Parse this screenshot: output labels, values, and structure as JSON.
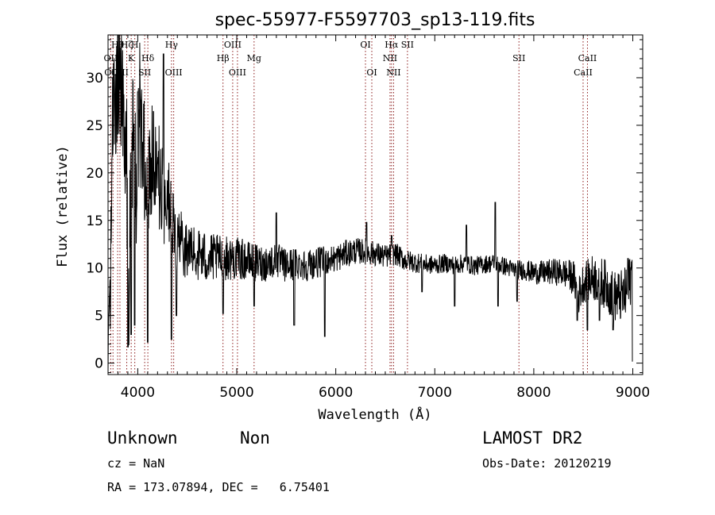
{
  "chart_data": {
    "type": "line",
    "title": "spec-55977-F5597703_sp13-119.fits",
    "xlabel": "Wavelength (Å)",
    "ylabel": "Flux (relative)",
    "xlim": [
      3700,
      9100
    ],
    "ylim": [
      -1.2,
      34.5
    ],
    "xticks": [
      4000,
      5000,
      6000,
      7000,
      8000,
      9000
    ],
    "yticks": [
      0,
      5,
      10,
      15,
      20,
      25,
      30
    ],
    "grid": false,
    "anchors": [
      [
        3700,
        0
      ],
      [
        3720,
        5
      ],
      [
        3740,
        24
      ],
      [
        3760,
        27
      ],
      [
        3780,
        26
      ],
      [
        3800,
        29
      ],
      [
        3830,
        30
      ],
      [
        3860,
        28
      ],
      [
        3890,
        20
      ],
      [
        3910,
        4
      ],
      [
        3930,
        25
      ],
      [
        3960,
        22
      ],
      [
        3990,
        18
      ],
      [
        4020,
        27
      ],
      [
        4060,
        22
      ],
      [
        4100,
        19
      ],
      [
        4150,
        23
      ],
      [
        4200,
        20
      ],
      [
        4260,
        17
      ],
      [
        4300,
        18
      ],
      [
        4350,
        14
      ],
      [
        4400,
        13
      ],
      [
        4500,
        12
      ],
      [
        4600,
        11.5
      ],
      [
        4700,
        11
      ],
      [
        4800,
        11
      ],
      [
        4900,
        11
      ],
      [
        5000,
        11
      ],
      [
        5100,
        10.8
      ],
      [
        5200,
        10.5
      ],
      [
        5300,
        10.5
      ],
      [
        5400,
        10.8
      ],
      [
        5500,
        10.2
      ],
      [
        5600,
        10.5
      ],
      [
        5700,
        10.3
      ],
      [
        5800,
        10.5
      ],
      [
        5900,
        10.8
      ],
      [
        6000,
        11
      ],
      [
        6100,
        11.5
      ],
      [
        6200,
        11.8
      ],
      [
        6300,
        11.7
      ],
      [
        6400,
        11.5
      ],
      [
        6500,
        11.2
      ],
      [
        6600,
        11.5
      ],
      [
        6700,
        10.8
      ],
      [
        6800,
        10.6
      ],
      [
        6900,
        10.4
      ],
      [
        7000,
        10.3
      ],
      [
        7100,
        10.5
      ],
      [
        7200,
        10.3
      ],
      [
        7300,
        10.5
      ],
      [
        7400,
        10.2
      ],
      [
        7500,
        10.4
      ],
      [
        7600,
        10.5
      ],
      [
        7700,
        10.2
      ],
      [
        7800,
        9.8
      ],
      [
        7900,
        9.8
      ],
      [
        8000,
        9.5
      ],
      [
        8100,
        9.5
      ],
      [
        8200,
        9.6
      ],
      [
        8300,
        9.5
      ],
      [
        8400,
        9
      ],
      [
        8450,
        7
      ],
      [
        8500,
        8.5
      ],
      [
        8600,
        9
      ],
      [
        8700,
        8.5
      ],
      [
        8750,
        8
      ],
      [
        8800,
        7
      ],
      [
        8900,
        7
      ],
      [
        8950,
        7.5
      ],
      [
        9000,
        10
      ]
    ],
    "features": [
      {
        "x": 3901,
        "y": 1.7
      },
      {
        "x": 3934,
        "y": 3.0
      },
      {
        "x": 3969,
        "y": 4.0
      },
      {
        "x": 4000,
        "y": 28.5
      },
      {
        "x": 4101,
        "y": 2.2
      },
      {
        "x": 4260,
        "y": 32.5
      },
      {
        "x": 4340,
        "y": 2.5
      },
      {
        "x": 4390,
        "y": 5.0
      },
      {
        "x": 4861,
        "y": 5.2
      },
      {
        "x": 5175,
        "y": 6.0
      },
      {
        "x": 5400,
        "y": 15.8
      },
      {
        "x": 5580,
        "y": 4.0
      },
      {
        "x": 5890,
        "y": 2.8
      },
      {
        "x": 6310,
        "y": 14.8
      },
      {
        "x": 6563,
        "y": 13.4
      },
      {
        "x": 6870,
        "y": 7.5
      },
      {
        "x": 7200,
        "y": 6.0
      },
      {
        "x": 7320,
        "y": 14.5
      },
      {
        "x": 7610,
        "y": 16.9
      },
      {
        "x": 7640,
        "y": 6.0
      },
      {
        "x": 7830,
        "y": 6.5
      },
      {
        "x": 8440,
        "y": 4.5
      },
      {
        "x": 8542,
        "y": 3.5
      },
      {
        "x": 8662,
        "y": 4.5
      },
      {
        "x": 8800,
        "y": 3.5
      },
      {
        "x": 8950,
        "y": 11.0
      },
      {
        "x": 9000,
        "y": 0.2
      }
    ],
    "noise_profile": [
      [
        3700,
        4
      ],
      [
        3800,
        7
      ],
      [
        4000,
        8
      ],
      [
        4200,
        6
      ],
      [
        4400,
        3.5
      ],
      [
        4800,
        2.5
      ],
      [
        5200,
        2.0
      ],
      [
        6000,
        1.5
      ],
      [
        7000,
        1.0
      ],
      [
        7800,
        1.0
      ],
      [
        8300,
        1.5
      ],
      [
        8600,
        2.5
      ],
      [
        9000,
        3.0
      ]
    ],
    "line_color": "#000000",
    "marker_color": "#8b1a1a",
    "spectral_lines": [
      {
        "x": 3727,
        "label": "OII",
        "row": 2
      },
      {
        "x": 3750,
        "label": "OIII",
        "row": 3
      },
      {
        "x": 3797,
        "label": "Hθ",
        "row": 1
      },
      {
        "x": 3820,
        "label": "OIII",
        "row": 3
      },
      {
        "x": 3889,
        "label": "Hζ",
        "row": 1
      },
      {
        "x": 3934,
        "label": "K",
        "row": 2
      },
      {
        "x": 3970,
        "label": "H",
        "row": 1
      },
      {
        "x": 4070,
        "label": "SII",
        "row": 3
      },
      {
        "x": 4102,
        "label": "Hδ",
        "row": 2
      },
      {
        "x": 4341,
        "label": "Hγ",
        "row": 1
      },
      {
        "x": 4363,
        "label": "OIII",
        "row": 3
      },
      {
        "x": 4861,
        "label": "Hβ",
        "row": 2
      },
      {
        "x": 4959,
        "label": "OIII",
        "row": 1
      },
      {
        "x": 5007,
        "label": "OIII",
        "row": 3
      },
      {
        "x": 5175,
        "label": "Mg",
        "row": 2
      },
      {
        "x": 6300,
        "label": "OI",
        "row": 1
      },
      {
        "x": 6364,
        "label": "OI",
        "row": 3
      },
      {
        "x": 6548,
        "label": "NII",
        "row": 2
      },
      {
        "x": 6563,
        "label": "Hα",
        "row": 1
      },
      {
        "x": 6584,
        "label": "NII",
        "row": 3
      },
      {
        "x": 6724,
        "label": "SII",
        "row": 1
      },
      {
        "x": 7850,
        "label": "SII",
        "row": 2
      },
      {
        "x": 8498,
        "label": "CaII",
        "row": 3
      },
      {
        "x": 8542,
        "label": "CaII",
        "row": 2
      }
    ]
  },
  "info": {
    "class_label": "Unknown",
    "subclass_label": "Non",
    "survey": "LAMOST DR2",
    "redshift": "cz = NaN",
    "obs_date": "Obs-Date: 20120219",
    "coords": "RA = 173.07894, DEC =   6.75401"
  }
}
